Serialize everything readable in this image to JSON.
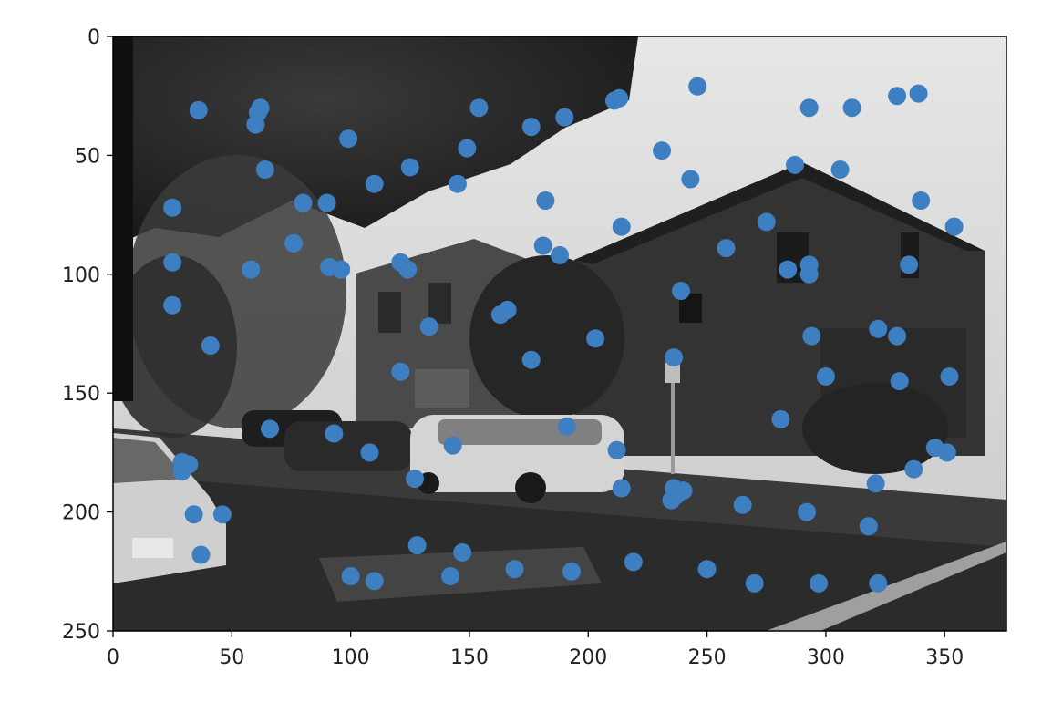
{
  "chart_data": {
    "type": "scatter",
    "title": "",
    "xlabel": "",
    "ylabel": "",
    "xlim": [
      0,
      376
    ],
    "ylim": [
      250,
      0
    ],
    "y_inverted": true,
    "grid": false,
    "legend": "none",
    "background_image": "grayscale street scene photo",
    "x_ticks": [
      "0",
      "50",
      "100",
      "150",
      "200",
      "250",
      "300",
      "350"
    ],
    "y_ticks": [
      "0",
      "50",
      "100",
      "150",
      "200",
      "250"
    ],
    "x_tick_values": [
      0,
      50,
      100,
      150,
      200,
      250,
      300,
      350
    ],
    "y_tick_values": [
      0,
      50,
      100,
      150,
      200,
      250
    ],
    "marker_color": "#3d7fc1",
    "points": {
      "x": [
        246,
        339,
        330,
        311,
        293,
        213,
        211,
        190,
        154,
        176,
        149,
        145,
        125,
        110,
        99,
        62,
        61,
        60,
        64,
        36,
        25,
        25,
        25,
        41,
        58,
        76,
        80,
        90,
        91,
        96,
        121,
        124,
        133,
        121,
        163,
        166,
        176,
        181,
        182,
        188,
        203,
        214,
        231,
        243,
        239,
        236,
        258,
        275,
        287,
        284,
        293,
        293,
        306,
        335,
        340,
        354,
        294,
        300,
        322,
        330,
        331,
        352,
        281,
        191,
        212,
        214,
        236,
        237,
        240,
        235,
        265,
        292,
        318,
        321,
        337,
        346,
        351,
        143,
        127,
        108,
        93,
        66,
        29,
        32,
        29,
        34,
        46,
        37,
        100,
        110,
        128,
        142,
        147,
        169,
        193,
        219,
        250,
        270,
        297,
        322
      ],
      "y": [
        21,
        24,
        25,
        30,
        30,
        26,
        27,
        34,
        30,
        38,
        47,
        62,
        55,
        62,
        43,
        30,
        32,
        37,
        56,
        31,
        72,
        95,
        113,
        130,
        98,
        87,
        70,
        70,
        97,
        98,
        95,
        98,
        122,
        141,
        117,
        115,
        136,
        88,
        69,
        92,
        127,
        80,
        48,
        60,
        107,
        135,
        89,
        78,
        54,
        98,
        96,
        100,
        56,
        96,
        69,
        80,
        126,
        143,
        123,
        126,
        145,
        143,
        161,
        164,
        174,
        190,
        190,
        193,
        191,
        195,
        197,
        200,
        206,
        188,
        182,
        173,
        175,
        172,
        186,
        175,
        167,
        165,
        179,
        180,
        183,
        201,
        201,
        218,
        227,
        229,
        214,
        227,
        217,
        224,
        225,
        221,
        224,
        230,
        230,
        230
      ]
    }
  }
}
